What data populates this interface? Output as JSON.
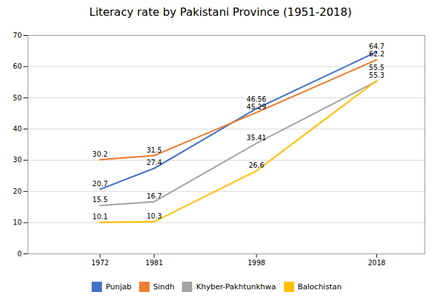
{
  "chart_data": {
    "type": "line",
    "title": "Literacy rate by Pakistani Province (1951-2018)",
    "x": [
      1972,
      1981,
      1998,
      2018
    ],
    "series": [
      {
        "name": "Punjab",
        "color": "#4472C4",
        "values": [
          20.7,
          27.4,
          46.56,
          64.7
        ]
      },
      {
        "name": "Sindh",
        "color": "#ED7D31",
        "values": [
          30.2,
          31.5,
          45.29,
          62.2
        ]
      },
      {
        "name": "Khyber-Pakhtunkhwa",
        "color": "#A5A5A5",
        "values": [
          15.5,
          16.7,
          35.41,
          55.3
        ]
      },
      {
        "name": "Balochistan",
        "color": "#FFC000",
        "values": [
          10.1,
          10.3,
          26.6,
          55.5
        ]
      }
    ],
    "xlim": [
      1960,
      2026
    ],
    "xticks": [
      1972,
      1981,
      1998,
      2018
    ],
    "ylim": [
      0,
      70
    ],
    "yticks": [
      0,
      10,
      20,
      30,
      40,
      50,
      60,
      70
    ],
    "grid": true,
    "legend": "bottom",
    "data_labels": true
  }
}
